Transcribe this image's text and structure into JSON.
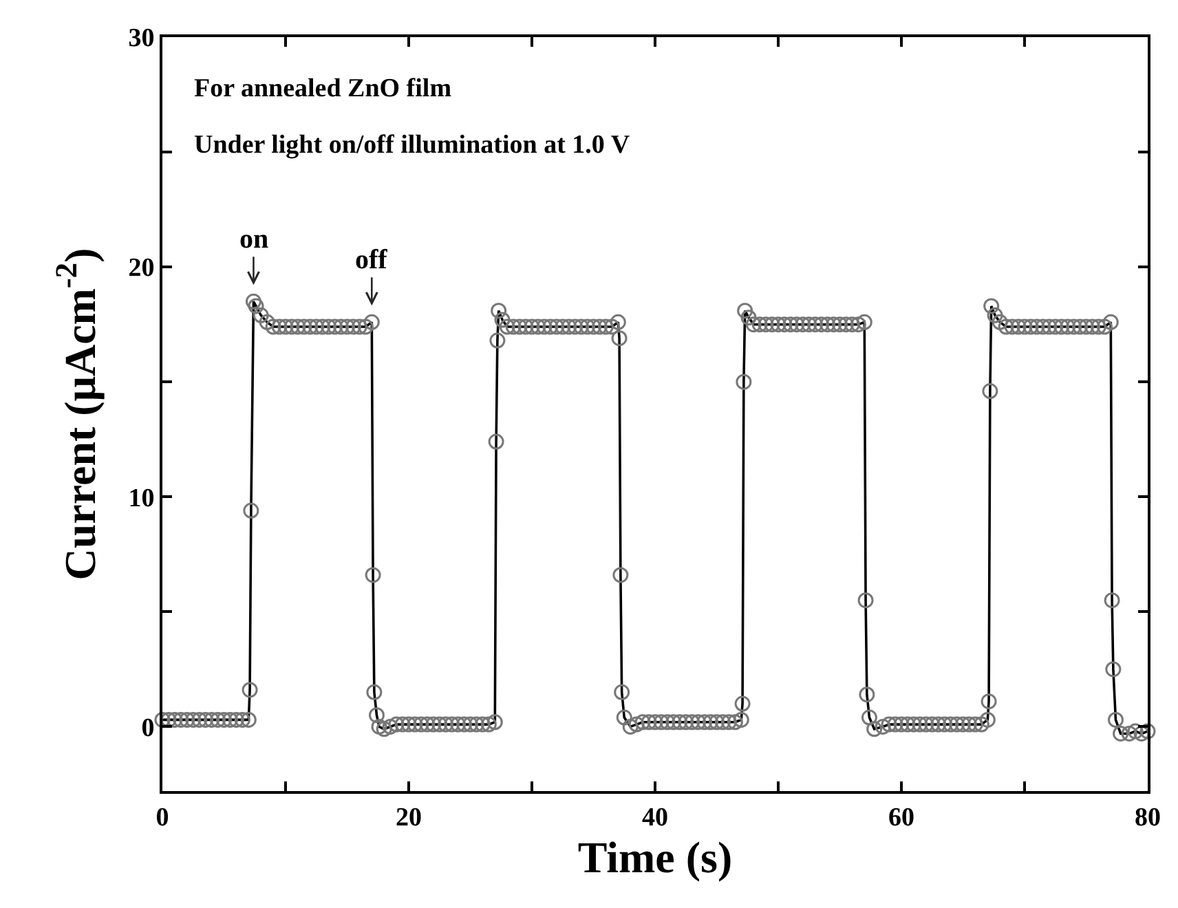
{
  "chart_data": {
    "type": "line",
    "xlabel": "Time (s)",
    "ylabel": "Current (μAcm$^{-2}$)",
    "annotations": [
      "For annealed ZnO film",
      "Under light on/off illumination at 1.0 V",
      {
        "text": "on",
        "x": 7.4,
        "y": 18.5
      },
      {
        "text": "off",
        "x": 17,
        "y": 17.6
      }
    ],
    "xlim": [
      0,
      80
    ],
    "xticks": [
      0,
      {
        "value": 10,
        "label": null
      },
      20,
      {
        "value": 30,
        "label": null
      },
      40,
      {
        "value": 50,
        "label": null
      },
      60,
      {
        "value": 70,
        "label": null
      },
      80
    ],
    "ylim": [
      -2.8,
      30
    ],
    "yticks": [
      0,
      {
        "value": 5,
        "label": null
      },
      10,
      {
        "value": 15,
        "label": null
      },
      20,
      {
        "value": 25,
        "label": null
      },
      30
    ],
    "marker": "circle",
    "line_style": "solid",
    "series": [
      {
        "color": "#000000",
        "x": [
          0,
          0.5,
          1,
          1.5,
          2,
          2.5,
          3,
          3.5,
          4,
          4.5,
          5,
          5.5,
          6,
          6.5,
          7,
          7.1,
          7.2,
          7.4,
          7.6,
          8,
          8.5,
          9,
          9.5,
          10,
          10.5,
          11,
          11.5,
          12,
          12.5,
          13,
          13.5,
          14,
          14.5,
          15,
          15.5,
          16,
          16.5,
          17,
          17.1,
          17.2,
          17.4,
          17.6,
          18,
          18.5,
          19,
          19.5,
          20,
          20.5,
          21,
          21.5,
          22,
          22.5,
          23,
          23.5,
          24,
          24.5,
          25,
          25.5,
          26,
          26.5,
          27,
          27.1,
          27.2,
          27.3,
          27.6,
          28,
          28.5,
          29,
          29.5,
          30,
          30.5,
          31,
          31.5,
          32,
          32.5,
          33,
          33.5,
          34,
          34.5,
          35,
          35.5,
          36,
          36.5,
          37,
          37.1,
          37.2,
          37.3,
          37.5,
          38,
          38.5,
          39,
          39.5,
          40,
          40.5,
          41,
          41.5,
          42,
          42.5,
          43,
          43.5,
          44,
          44.5,
          45,
          45.5,
          46,
          46.5,
          47,
          47.1,
          47.2,
          47.3,
          47.6,
          48,
          48.5,
          49,
          49.5,
          50,
          50.5,
          51,
          51.5,
          52,
          52.5,
          53,
          53.5,
          54,
          54.5,
          55,
          55.5,
          56,
          56.5,
          57,
          57.1,
          57.2,
          57.4,
          57.8,
          58.5,
          59,
          59.5,
          60,
          60.5,
          61,
          61.5,
          62,
          62.5,
          63,
          63.5,
          64,
          64.5,
          65,
          65.5,
          66,
          66.5,
          67,
          67.1,
          67.2,
          67.3,
          67.6,
          68,
          68.5,
          69,
          69.5,
          70,
          70.5,
          71,
          71.5,
          72,
          72.5,
          73,
          73.5,
          74,
          74.5,
          75,
          75.5,
          76,
          76.5,
          77,
          77.1,
          77.2,
          77.4,
          77.8,
          78.5,
          79,
          79.5,
          80
        ],
        "values": [
          0.3,
          0.3,
          0.3,
          0.3,
          0.3,
          0.3,
          0.3,
          0.3,
          0.3,
          0.3,
          0.3,
          0.3,
          0.3,
          0.3,
          0.3,
          1.6,
          9.4,
          18.5,
          18.3,
          17.9,
          17.6,
          17.4,
          17.4,
          17.4,
          17.4,
          17.4,
          17.4,
          17.4,
          17.4,
          17.4,
          17.4,
          17.4,
          17.4,
          17.4,
          17.4,
          17.4,
          17.4,
          17.6,
          6.6,
          1.5,
          0.5,
          0.0,
          -0.1,
          0.0,
          0.1,
          0.1,
          0.1,
          0.1,
          0.1,
          0.1,
          0.1,
          0.1,
          0.1,
          0.1,
          0.1,
          0.1,
          0.1,
          0.1,
          0.1,
          0.1,
          0.2,
          12.4,
          16.8,
          18.1,
          17.7,
          17.4,
          17.4,
          17.4,
          17.4,
          17.4,
          17.4,
          17.4,
          17.4,
          17.4,
          17.4,
          17.4,
          17.4,
          17.4,
          17.4,
          17.4,
          17.4,
          17.4,
          17.4,
          17.6,
          16.9,
          6.6,
          1.5,
          0.4,
          0.0,
          0.1,
          0.2,
          0.2,
          0.2,
          0.2,
          0.2,
          0.2,
          0.2,
          0.2,
          0.2,
          0.2,
          0.2,
          0.2,
          0.2,
          0.2,
          0.2,
          0.2,
          0.3,
          1.0,
          15.0,
          18.1,
          17.8,
          17.5,
          17.5,
          17.5,
          17.5,
          17.5,
          17.5,
          17.5,
          17.5,
          17.5,
          17.5,
          17.5,
          17.5,
          17.5,
          17.5,
          17.5,
          17.5,
          17.5,
          17.5,
          17.6,
          5.5,
          1.4,
          0.4,
          -0.1,
          0.0,
          0.1,
          0.1,
          0.1,
          0.1,
          0.1,
          0.1,
          0.1,
          0.1,
          0.1,
          0.1,
          0.1,
          0.1,
          0.1,
          0.1,
          0.1,
          0.1,
          0.3,
          1.1,
          14.6,
          18.3,
          17.9,
          17.6,
          17.4,
          17.4,
          17.4,
          17.4,
          17.4,
          17.4,
          17.4,
          17.4,
          17.4,
          17.4,
          17.4,
          17.4,
          17.4,
          17.4,
          17.4,
          17.4,
          17.4,
          17.6,
          5.5,
          2.5,
          0.3,
          -0.3,
          -0.3,
          -0.2,
          -0.3,
          -0.2
        ]
      }
    ]
  }
}
